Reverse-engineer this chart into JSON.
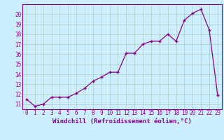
{
  "x": [
    0,
    1,
    2,
    3,
    4,
    5,
    6,
    7,
    8,
    9,
    10,
    11,
    12,
    13,
    14,
    15,
    16,
    17,
    18,
    19,
    20,
    21,
    22,
    23
  ],
  "y": [
    11.5,
    10.8,
    11.0,
    11.7,
    11.7,
    11.7,
    12.1,
    12.6,
    13.3,
    13.7,
    14.2,
    14.2,
    16.1,
    16.1,
    17.0,
    17.3,
    17.3,
    18.0,
    17.3,
    19.4,
    20.1,
    20.5,
    18.4,
    11.9
  ],
  "line_color": "#880088",
  "marker": "+",
  "bg_color": "#cceeff",
  "grid_color": "#aaccbb",
  "xlabel": "Windchill (Refroidissement éolien,°C)",
  "ylim_min": 10.5,
  "ylim_max": 21.0,
  "xlim_min": -0.5,
  "xlim_max": 23.5,
  "yticks": [
    11,
    12,
    13,
    14,
    15,
    16,
    17,
    18,
    19,
    20
  ],
  "xticks": [
    0,
    1,
    2,
    3,
    4,
    5,
    6,
    7,
    8,
    9,
    10,
    11,
    12,
    13,
    14,
    15,
    16,
    17,
    18,
    19,
    20,
    21,
    22,
    23
  ],
  "tick_fontsize": 5.5,
  "label_fontsize": 6.5,
  "linewidth": 0.9,
  "markersize": 3.5,
  "markeredgewidth": 1.0
}
